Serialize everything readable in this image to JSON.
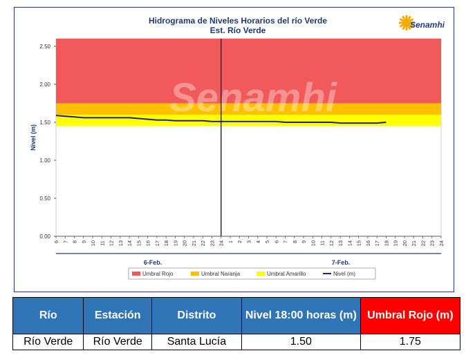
{
  "chart_data": {
    "type": "line",
    "title": "Hidrograma de Niveles Horarios del río Verde",
    "subtitle": "Est. Río Verde",
    "ylabel": "Nivel (m)",
    "ylim": [
      0,
      2.6
    ],
    "y_ticks": [
      "0.00",
      "0.50",
      "1.00",
      "1.50",
      "2.00",
      "2.50"
    ],
    "x_tick_labels": [
      "6",
      "7",
      "8",
      "9",
      "10",
      "11",
      "12",
      "13",
      "14",
      "15",
      "16",
      "17",
      "18",
      "19",
      "20",
      "21",
      "22",
      "23",
      "24",
      "1",
      "2",
      "3",
      "4",
      "5",
      "6",
      "7",
      "8",
      "9",
      "10",
      "11",
      "12",
      "13",
      "14",
      "15",
      "16",
      "17",
      "18",
      "19",
      "20",
      "21",
      "22",
      "23",
      "24"
    ],
    "day_labels": [
      "6-Feb.",
      "7-Feb."
    ],
    "bands": [
      {
        "name": "Umbral Rojo",
        "from": 1.75,
        "to": 2.6,
        "color": "#f05a5a"
      },
      {
        "name": "Umbral Naranja",
        "from": 1.6,
        "to": 1.75,
        "color": "#ffc000"
      },
      {
        "name": "Umbral Amarillo",
        "from": 1.45,
        "to": 1.6,
        "color": "#ffff00"
      }
    ],
    "series": [
      {
        "name": "Nivel (m)",
        "color": "#1f1f8f",
        "values": [
          1.59,
          1.58,
          1.57,
          1.56,
          1.56,
          1.56,
          1.56,
          1.56,
          1.56,
          1.55,
          1.54,
          1.53,
          1.53,
          1.52,
          1.52,
          1.52,
          1.52,
          1.51,
          1.51,
          1.51,
          1.51,
          1.51,
          1.51,
          1.51,
          1.51,
          1.5,
          1.5,
          1.5,
          1.5,
          1.5,
          1.5,
          1.49,
          1.49,
          1.49,
          1.49,
          1.49,
          1.5
        ]
      }
    ],
    "legend": [
      "Umbral Rojo",
      "Umbral Naranja",
      "Umbral Amarillo",
      "Nivel (m)"
    ],
    "legend_position": "bottom",
    "watermark": "Senamhi",
    "logo_text": "Senamhi"
  },
  "table": {
    "headers": [
      "Río",
      "Estación",
      "Distrito",
      "Nivel 18:00 horas (m)",
      "Umbral Rojo (m)"
    ],
    "row": [
      "Río Verde",
      "Río Verde",
      "Santa Lucía",
      "1.50",
      "1.75"
    ]
  }
}
